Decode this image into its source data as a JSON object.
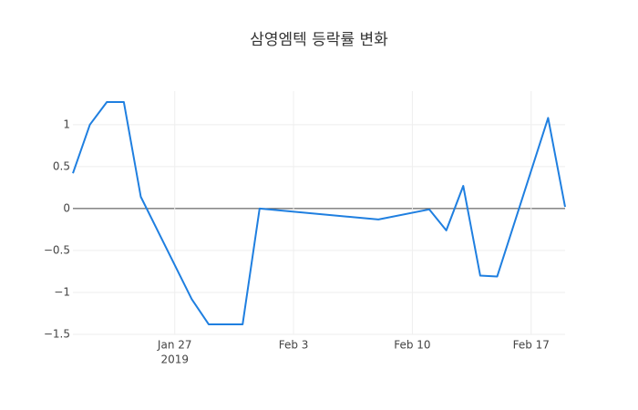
{
  "chart_data": {
    "type": "line",
    "title": "삼영엠텍 등락률 변화",
    "x": [
      "2019-01-21",
      "2019-01-22",
      "2019-01-23",
      "2019-01-24",
      "2019-01-25",
      "2019-01-28",
      "2019-01-29",
      "2019-01-30",
      "2019-01-31",
      "2019-02-01",
      "2019-02-08",
      "2019-02-11",
      "2019-02-12",
      "2019-02-13",
      "2019-02-14",
      "2019-02-15",
      "2019-02-18",
      "2019-02-19"
    ],
    "series": [
      {
        "color": "#1f7fe0",
        "values": [
          0.42,
          1.0,
          1.27,
          1.27,
          0.14,
          -1.08,
          -1.38,
          -1.38,
          -1.38,
          0.0,
          -0.13,
          -0.01,
          -0.26,
          0.27,
          -0.8,
          -0.81,
          1.08,
          0.02
        ]
      }
    ],
    "xlim": [
      "2019-01-21",
      "2019-02-19"
    ],
    "xticks": [
      {
        "value": "2019-01-27",
        "label": "Jan 27",
        "sublabel": "2019"
      },
      {
        "value": "2019-02-03",
        "label": "Feb 3"
      },
      {
        "value": "2019-02-10",
        "label": "Feb 10"
      },
      {
        "value": "2019-02-17",
        "label": "Feb 17"
      }
    ],
    "ylim": [
      -1.5,
      1.4
    ],
    "yticks": [
      {
        "value": -1.5,
        "label": "−1.5"
      },
      {
        "value": -1,
        "label": "−1"
      },
      {
        "value": -0.5,
        "label": "−0.5"
      },
      0,
      0.5,
      1
    ],
    "grid": true
  }
}
